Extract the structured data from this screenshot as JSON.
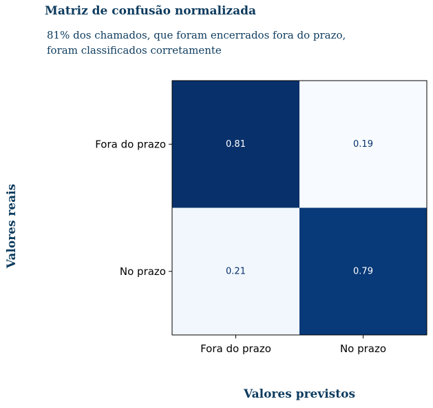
{
  "chart_data": {
    "type": "heatmap",
    "title": "Matriz de confusão normalizada",
    "subtitle": [
      "81% dos chamados, que foram encerrados fora do prazo,",
      "foram classificados corretamente"
    ],
    "xlabel": "Valores previstos",
    "ylabel": "Valores reais",
    "row_labels": [
      "Fora do prazo",
      "No prazo"
    ],
    "col_labels": [
      "Fora do prazo",
      "No prazo"
    ],
    "values": [
      [
        0.81,
        0.19
      ],
      [
        0.21,
        0.79
      ]
    ],
    "value_labels": [
      [
        "0.81",
        "0.19"
      ],
      [
        "0.21",
        "0.79"
      ]
    ],
    "colormap": "Blues",
    "colorbar": false
  }
}
